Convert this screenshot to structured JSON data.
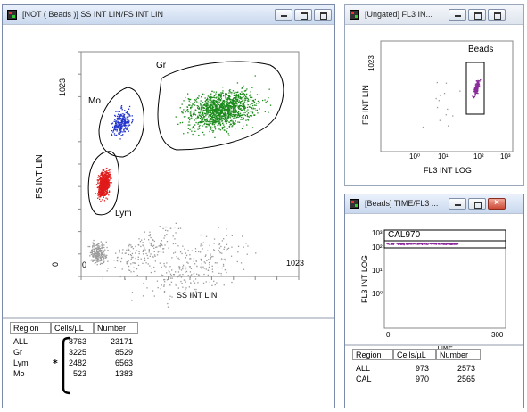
{
  "colors": {
    "gr": "#1a8a1a",
    "mo": "#2233cc",
    "lym": "#e01a1a",
    "debris": "#9a9a9a",
    "beads": "#8a2a9a"
  },
  "main_window": {
    "title": "[NOT ( Beads )] SS INT LIN/FS INT LIN",
    "ylabel": "FS INT LIN",
    "xlabel": "SS INT LIN",
    "ytick_top": "1023",
    "ytick_bottom": "0",
    "xtick_right": "1023",
    "gate_labels": {
      "gr": "Gr",
      "mo": "Mo",
      "lym": "Lym"
    },
    "table": {
      "headers": [
        "Region",
        "Cells/µL",
        "Number"
      ],
      "rows": [
        {
          "region": "ALL",
          "cells": "8763",
          "number": "23171"
        },
        {
          "region": "Gr",
          "cells": "3225",
          "number": "8529"
        },
        {
          "region": "Lym",
          "cells": "2482",
          "number": "6563"
        },
        {
          "region": "Mo",
          "cells": "523",
          "number": "1383"
        }
      ]
    }
  },
  "ungated_window": {
    "title": "[Ungated] FL3 IN...",
    "ylabel": "FS INT LIN",
    "xlabel": "FL3 INT LOG",
    "ytick_top": "1023",
    "gate_label": "Beads",
    "xticks": [
      "10⁰",
      "10¹",
      "10²",
      "10³"
    ]
  },
  "beads_window": {
    "title": "[Beads] TIME/FL3 ...",
    "ylabel": "FL3 INT LOG",
    "xlabel": "TIME",
    "gate_label": "CAL970",
    "yticks": [
      "10³",
      "10²",
      "10¹",
      "10⁰"
    ],
    "xtick_left": "0",
    "xtick_right": "300",
    "table": {
      "headers": [
        "Region",
        "Cells/µL",
        "Number"
      ],
      "rows": [
        {
          "region": "ALL",
          "cells": "973",
          "number": "2573"
        },
        {
          "region": "CAL",
          "cells": "970",
          "number": "2565"
        }
      ]
    }
  }
}
